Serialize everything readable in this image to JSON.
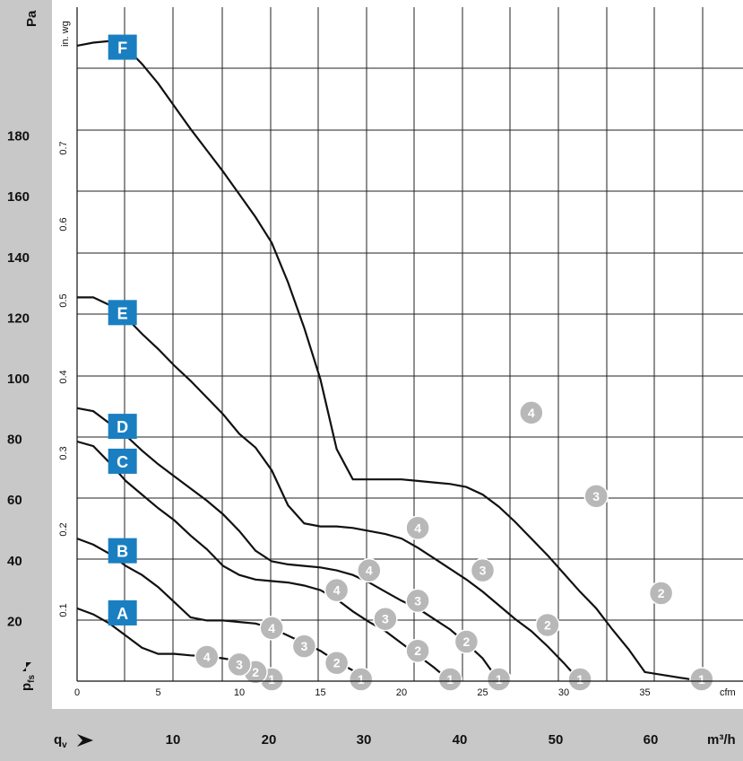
{
  "chart_data": {
    "type": "line",
    "title": "",
    "y_axis_left": {
      "unit": "Pa",
      "ticks": [
        20,
        40,
        60,
        80,
        100,
        120,
        140,
        160,
        180
      ],
      "ylim": [
        0,
        200
      ]
    },
    "y_axis_inwg": {
      "unit": "in. wg",
      "ticks": [
        "0.1",
        "0.2",
        "0.3",
        "0.4",
        "0.5",
        "0.6",
        "0.7"
      ]
    },
    "x_axis_cfm": {
      "unit": "cfm",
      "ticks": [
        "0",
        "5",
        "10",
        "15",
        "20",
        "25",
        "30",
        "35"
      ],
      "xlim": [
        0,
        41
      ]
    },
    "x_axis_m3h": {
      "unit": "m³/h",
      "ticks": [
        "10",
        "20",
        "30",
        "40",
        "50",
        "60"
      ]
    },
    "y_symbol": "p",
    "y_symbol_sub": "fs",
    "x_symbol": "q",
    "x_symbol_sub": "v",
    "grid": true,
    "series": [
      {
        "name": "A",
        "points": [
          [
            0,
            24.0
          ],
          [
            1,
            22.0
          ],
          [
            2,
            19.0
          ],
          [
            3,
            15.0
          ],
          [
            4,
            11.0
          ],
          [
            5,
            9.0
          ],
          [
            6,
            9.0
          ],
          [
            7,
            8.5
          ],
          [
            8,
            8.2
          ],
          [
            9,
            7.5
          ],
          [
            10,
            6.5
          ],
          [
            11,
            5.0
          ],
          [
            11.8,
            3.0
          ],
          [
            12.1,
            0.0
          ]
        ]
      },
      {
        "name": "B",
        "points": [
          [
            0,
            47.0
          ],
          [
            1,
            45.0
          ],
          [
            2,
            42.0
          ],
          [
            3,
            38.0
          ],
          [
            4,
            35.0
          ],
          [
            5,
            31.0
          ],
          [
            6,
            26.0
          ],
          [
            7,
            21.0
          ],
          [
            8,
            20.0
          ],
          [
            9,
            20.0
          ],
          [
            10,
            19.5
          ],
          [
            11,
            19.0
          ],
          [
            12,
            17.5
          ],
          [
            13,
            15.0
          ],
          [
            14,
            12.5
          ],
          [
            15,
            10.0
          ],
          [
            16,
            6.5
          ],
          [
            17,
            3.5
          ],
          [
            17.8,
            0.0
          ]
        ]
      },
      {
        "name": "C",
        "points": [
          [
            0,
            79.0
          ],
          [
            1,
            77.5
          ],
          [
            2,
            72.0
          ],
          [
            3,
            66.0
          ],
          [
            4,
            61.5
          ],
          [
            5,
            57.0
          ],
          [
            6,
            53.0
          ],
          [
            7,
            48.0
          ],
          [
            8,
            43.5
          ],
          [
            9,
            38.0
          ],
          [
            10,
            35.0
          ],
          [
            11,
            33.5
          ],
          [
            12,
            33.0
          ],
          [
            13,
            32.5
          ],
          [
            14,
            31.5
          ],
          [
            15,
            30.0
          ],
          [
            16,
            27.0
          ],
          [
            17,
            23.0
          ],
          [
            18,
            19.5
          ],
          [
            19,
            16.5
          ],
          [
            20,
            12.5
          ],
          [
            21,
            8.5
          ],
          [
            22,
            4.5
          ],
          [
            23,
            0.0
          ]
        ]
      },
      {
        "name": "D",
        "points": [
          [
            0,
            90.0
          ],
          [
            1,
            89.0
          ],
          [
            2,
            85.0
          ],
          [
            3,
            81.0
          ],
          [
            4,
            76.0
          ],
          [
            5,
            71.5
          ],
          [
            6,
            67.5
          ],
          [
            7,
            63.5
          ],
          [
            8,
            59.5
          ],
          [
            9,
            55.0
          ],
          [
            10,
            49.5
          ],
          [
            11,
            43.0
          ],
          [
            12,
            39.5
          ],
          [
            13,
            38.5
          ],
          [
            14,
            38.0
          ],
          [
            15,
            37.5
          ],
          [
            16,
            36.5
          ],
          [
            17,
            35.0
          ],
          [
            18,
            32.5
          ],
          [
            19,
            29.5
          ],
          [
            20,
            26.5
          ],
          [
            21,
            24.0
          ],
          [
            22,
            20.5
          ],
          [
            23,
            17.0
          ],
          [
            24,
            12.5
          ],
          [
            25,
            7.5
          ],
          [
            26,
            0.0
          ]
        ]
      },
      {
        "name": "E",
        "points": [
          [
            0,
            126.5
          ],
          [
            1,
            126.5
          ],
          [
            2,
            124.0
          ],
          [
            3,
            120.0
          ],
          [
            4,
            114.5
          ],
          [
            5,
            109.5
          ],
          [
            6,
            104.0
          ],
          [
            7,
            99.0
          ],
          [
            8,
            93.5
          ],
          [
            9,
            88.0
          ],
          [
            10,
            81.5
          ],
          [
            11,
            77.0
          ],
          [
            12,
            69.5
          ],
          [
            13,
            58.0
          ],
          [
            14,
            52.0
          ],
          [
            15,
            51.0
          ],
          [
            16,
            51.0
          ],
          [
            17,
            50.5
          ],
          [
            18,
            49.5
          ],
          [
            19,
            48.5
          ],
          [
            20,
            47.0
          ],
          [
            21,
            44.0
          ],
          [
            22,
            40.5
          ],
          [
            23,
            37.0
          ],
          [
            24,
            33.5
          ],
          [
            25,
            29.5
          ],
          [
            26,
            25.0
          ],
          [
            27,
            20.5
          ],
          [
            28,
            16.5
          ],
          [
            29,
            11.5
          ],
          [
            30,
            6.0
          ],
          [
            31,
            0.0
          ]
        ]
      },
      {
        "name": "F",
        "points": [
          [
            0,
            209.5
          ],
          [
            1,
            210.5
          ],
          [
            2,
            211.0
          ],
          [
            3,
            209.0
          ],
          [
            4,
            203.5
          ],
          [
            5,
            197.0
          ],
          [
            6,
            189.5
          ],
          [
            7,
            182.0
          ],
          [
            8,
            175.0
          ],
          [
            9,
            168.0
          ],
          [
            10,
            160.5
          ],
          [
            11,
            153.0
          ],
          [
            12,
            144.5
          ],
          [
            13,
            131.5
          ],
          [
            14,
            116.5
          ],
          [
            15,
            99.5
          ],
          [
            16,
            76.5
          ],
          [
            17,
            66.5
          ],
          [
            18,
            66.5
          ],
          [
            19,
            66.5
          ],
          [
            20,
            66.5
          ],
          [
            21,
            66.0
          ],
          [
            22,
            65.5
          ],
          [
            23,
            65.0
          ],
          [
            24,
            64.0
          ],
          [
            25,
            61.5
          ],
          [
            26,
            57.5
          ],
          [
            27,
            52.5
          ],
          [
            28,
            47.0
          ],
          [
            29,
            41.5
          ],
          [
            30,
            35.5
          ],
          [
            31,
            29.5
          ],
          [
            32,
            24.0
          ],
          [
            33,
            17.0
          ],
          [
            34,
            10.5
          ],
          [
            35,
            3.0
          ],
          [
            38.5,
            0.0
          ]
        ]
      }
    ],
    "series_labels": [
      {
        "name": "A",
        "x": 2.8,
        "y": 22.5
      },
      {
        "name": "B",
        "x": 2.8,
        "y": 43.0
      },
      {
        "name": "C",
        "x": 2.8,
        "y": 72.5
      },
      {
        "name": "D",
        "x": 2.8,
        "y": 84.0
      },
      {
        "name": "E",
        "x": 2.8,
        "y": 121.5
      },
      {
        "name": "F",
        "x": 2.8,
        "y": 209.0
      }
    ],
    "operating_points": [
      {
        "label": "1",
        "x": 12.0,
        "y": 0.0
      },
      {
        "label": "2",
        "x": 11.0,
        "y": 3.0
      },
      {
        "label": "3",
        "x": 10.0,
        "y": 5.5
      },
      {
        "label": "4",
        "x": 8.0,
        "y": 8.0
      },
      {
        "label": "1",
        "x": 17.5,
        "y": 0.0
      },
      {
        "label": "2",
        "x": 16.0,
        "y": 6.0
      },
      {
        "label": "3",
        "x": 14.0,
        "y": 11.5
      },
      {
        "label": "4",
        "x": 12.0,
        "y": 17.5
      },
      {
        "label": "1",
        "x": 23.0,
        "y": 0.0
      },
      {
        "label": "2",
        "x": 21.0,
        "y": 10.0
      },
      {
        "label": "3",
        "x": 19.0,
        "y": 20.5
      },
      {
        "label": "4",
        "x": 16.0,
        "y": 30.0
      },
      {
        "label": "1",
        "x": 26.0,
        "y": 0.0
      },
      {
        "label": "2",
        "x": 24.0,
        "y": 13.0
      },
      {
        "label": "3",
        "x": 21.0,
        "y": 26.5
      },
      {
        "label": "4",
        "x": 18.0,
        "y": 36.5
      },
      {
        "label": "1",
        "x": 31.0,
        "y": 0.0
      },
      {
        "label": "2",
        "x": 29.0,
        "y": 18.5
      },
      {
        "label": "3",
        "x": 25.0,
        "y": 36.5
      },
      {
        "label": "4",
        "x": 21.0,
        "y": 50.5
      },
      {
        "label": "1",
        "x": 38.5,
        "y": 0.0
      },
      {
        "label": "2",
        "x": 36.0,
        "y": 29.0
      },
      {
        "label": "3",
        "x": 32.0,
        "y": 61.0
      },
      {
        "label": "4",
        "x": 28.0,
        "y": 88.5
      }
    ]
  }
}
